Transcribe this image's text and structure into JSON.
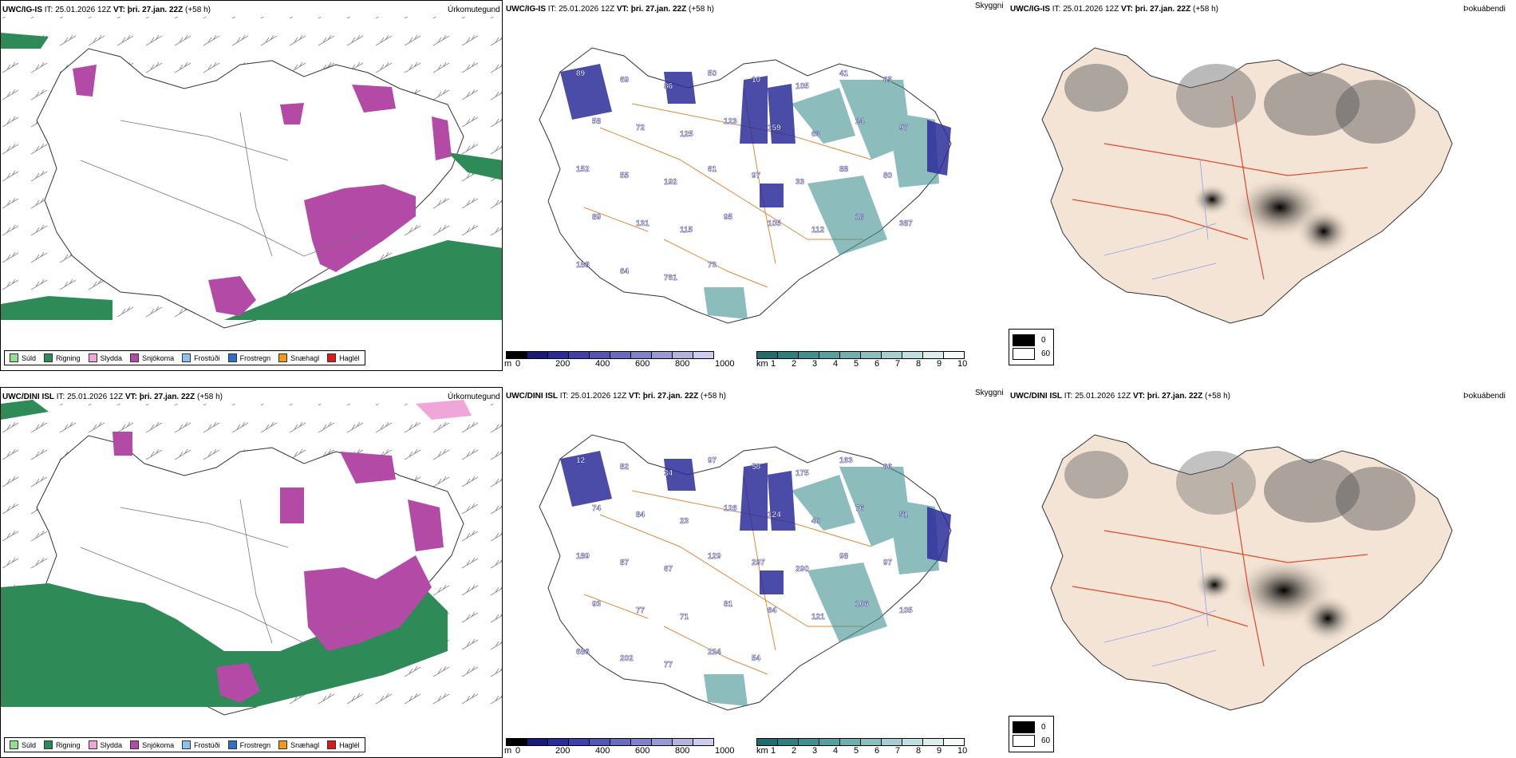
{
  "rows": [
    {
      "model": "UWC/IG-IS",
      "it_label": "IT:",
      "it_value": "25.01.2026 12Z",
      "vt_label": "VT:",
      "vt_value": "þri. 27.jan. 22Z",
      "lead": "(+58 h)",
      "cloud_numbers": [
        "89",
        "69",
        "86",
        "50",
        "10",
        "105",
        "41",
        "65",
        "58",
        "72",
        "125",
        "123",
        "159",
        "63",
        "24",
        "97",
        "152",
        "55",
        "192",
        "61",
        "97",
        "33",
        "88",
        "80",
        "89",
        "131",
        "115",
        "95",
        "105",
        "112",
        "18",
        "387",
        "188",
        "64",
        "761",
        "73"
      ]
    },
    {
      "model": "UWC/DINI ISL",
      "it_label": "IT:",
      "it_value": "25.01.2026 12Z",
      "vt_label": "VT:",
      "vt_value": "þri. 27.jan. 22Z",
      "lead": "(+58 h)",
      "cloud_numbers": [
        "12",
        "82",
        "34",
        "97",
        "58",
        "175",
        "163",
        "66",
        "74",
        "84",
        "23",
        "126",
        "124",
        "40",
        "76",
        "51",
        "189",
        "87",
        "67",
        "129",
        "297",
        "290",
        "98",
        "97",
        "93",
        "77",
        "71",
        "81",
        "64",
        "121",
        "106",
        "105",
        "686",
        "202",
        "77",
        "224",
        "54"
      ]
    }
  ],
  "titles": {
    "precip": "Úrkomutegund",
    "cloud": "Skyggni",
    "fog": "Þokuábendi"
  },
  "precip_legend": [
    {
      "label": "Súld",
      "color": "#8fe08f"
    },
    {
      "label": "Rigning",
      "color": "#2e8b57"
    },
    {
      "label": "Slydda",
      "color": "#f0a6d8"
    },
    {
      "label": "Snjókoma",
      "color": "#b24aa6"
    },
    {
      "label": "Frostúði",
      "color": "#8fbff0"
    },
    {
      "label": "Frostregn",
      "color": "#2f6fc9"
    },
    {
      "label": "Snæhagl",
      "color": "#f29a18"
    },
    {
      "label": "Haglél",
      "color": "#e01818"
    }
  ],
  "cloud_scale": {
    "unit": "m",
    "ticks": [
      "0",
      "200",
      "400",
      "600",
      "800",
      "1000"
    ],
    "colors": [
      "#000000",
      "#1a1a7a",
      "#2b2b99",
      "#4040aa",
      "#5555b5",
      "#6a6ac0",
      "#8080cc",
      "#9999d6",
      "#b3b3e0",
      "#ccccee"
    ]
  },
  "vis_scale": {
    "unit": "km",
    "ticks": [
      "1",
      "2",
      "3",
      "4",
      "5",
      "6",
      "7",
      "8",
      "9",
      "10"
    ],
    "colors": [
      "#1f6e6e",
      "#2e8080",
      "#409090",
      "#55a0a0",
      "#6eb0b0",
      "#88c0c0",
      "#a3d0d0",
      "#bfe0e0",
      "#dbeeee",
      "#f2fafa"
    ]
  },
  "fog_legend": [
    {
      "value": "0",
      "color": "#000000"
    },
    {
      "value": "60",
      "color": "#ffffff"
    }
  ]
}
